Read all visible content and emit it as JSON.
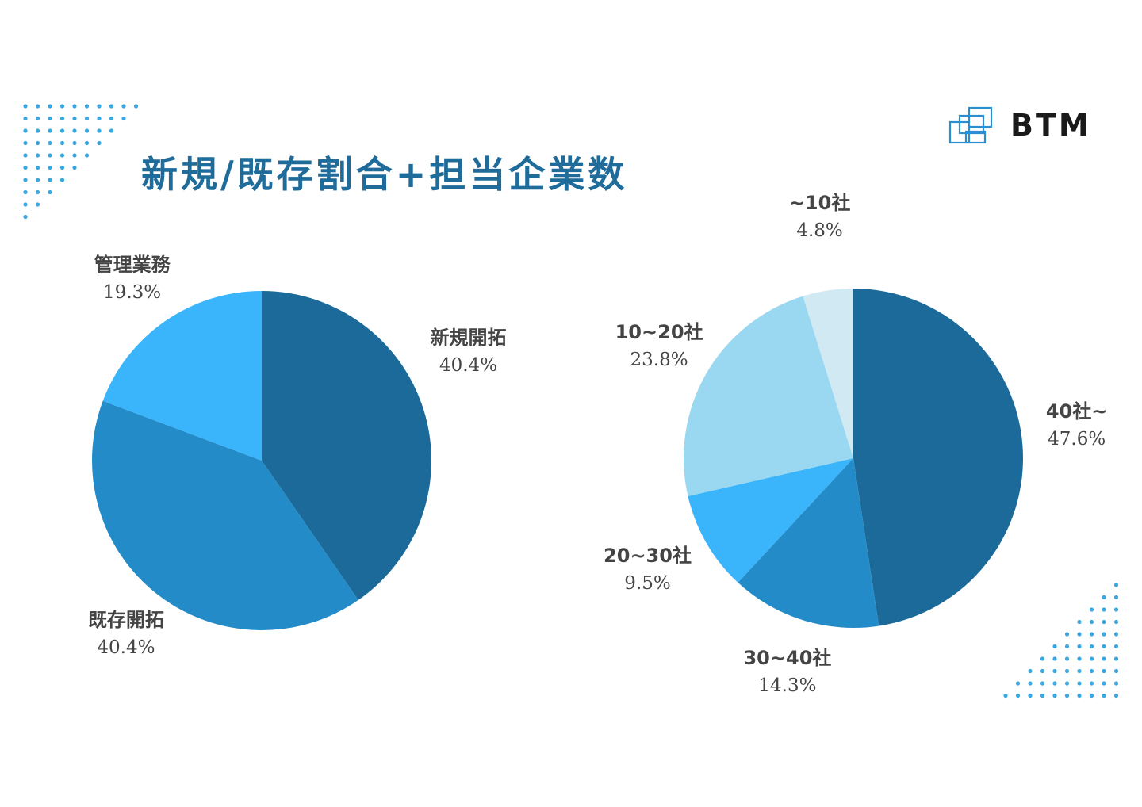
{
  "title": "新規/既存割合+担当企業数",
  "logo": {
    "text": "BTM",
    "icon": "stacked-squares-logo-icon"
  },
  "colors": {
    "title": "#1f6b9a",
    "dark_blue": "#1b6a99",
    "mid_blue": "#238cc8",
    "bright_blue": "#3ab4fa",
    "light_blue": "#9ad7f0",
    "pale_blue": "#d0e9f2",
    "dots": "#3aa7e0"
  },
  "chart_data": [
    {
      "type": "pie",
      "title": "",
      "slices": [
        {
          "label": "新規開拓",
          "value": 40.4,
          "pct_label": "40.4%",
          "color": "#1b6a99"
        },
        {
          "label": "既存開拓",
          "value": 40.4,
          "pct_label": "40.4%",
          "color": "#238cc8"
        },
        {
          "label": "管理業務",
          "value": 19.3,
          "pct_label": "19.3%",
          "color": "#3ab4fa"
        }
      ]
    },
    {
      "type": "pie",
      "title": "",
      "slices": [
        {
          "label": "40社~",
          "value": 47.6,
          "pct_label": "47.6%",
          "color": "#1b6a99"
        },
        {
          "label": "30~40社",
          "value": 14.3,
          "pct_label": "14.3%",
          "color": "#238cc8"
        },
        {
          "label": "20~30社",
          "value": 9.5,
          "pct_label": "9.5%",
          "color": "#3ab4fa"
        },
        {
          "label": "10~20社",
          "value": 23.8,
          "pct_label": "23.8%",
          "color": "#9ad7f0"
        },
        {
          "label": "~10社",
          "value": 4.8,
          "pct_label": "4.8%",
          "color": "#d0e9f2"
        }
      ]
    }
  ]
}
